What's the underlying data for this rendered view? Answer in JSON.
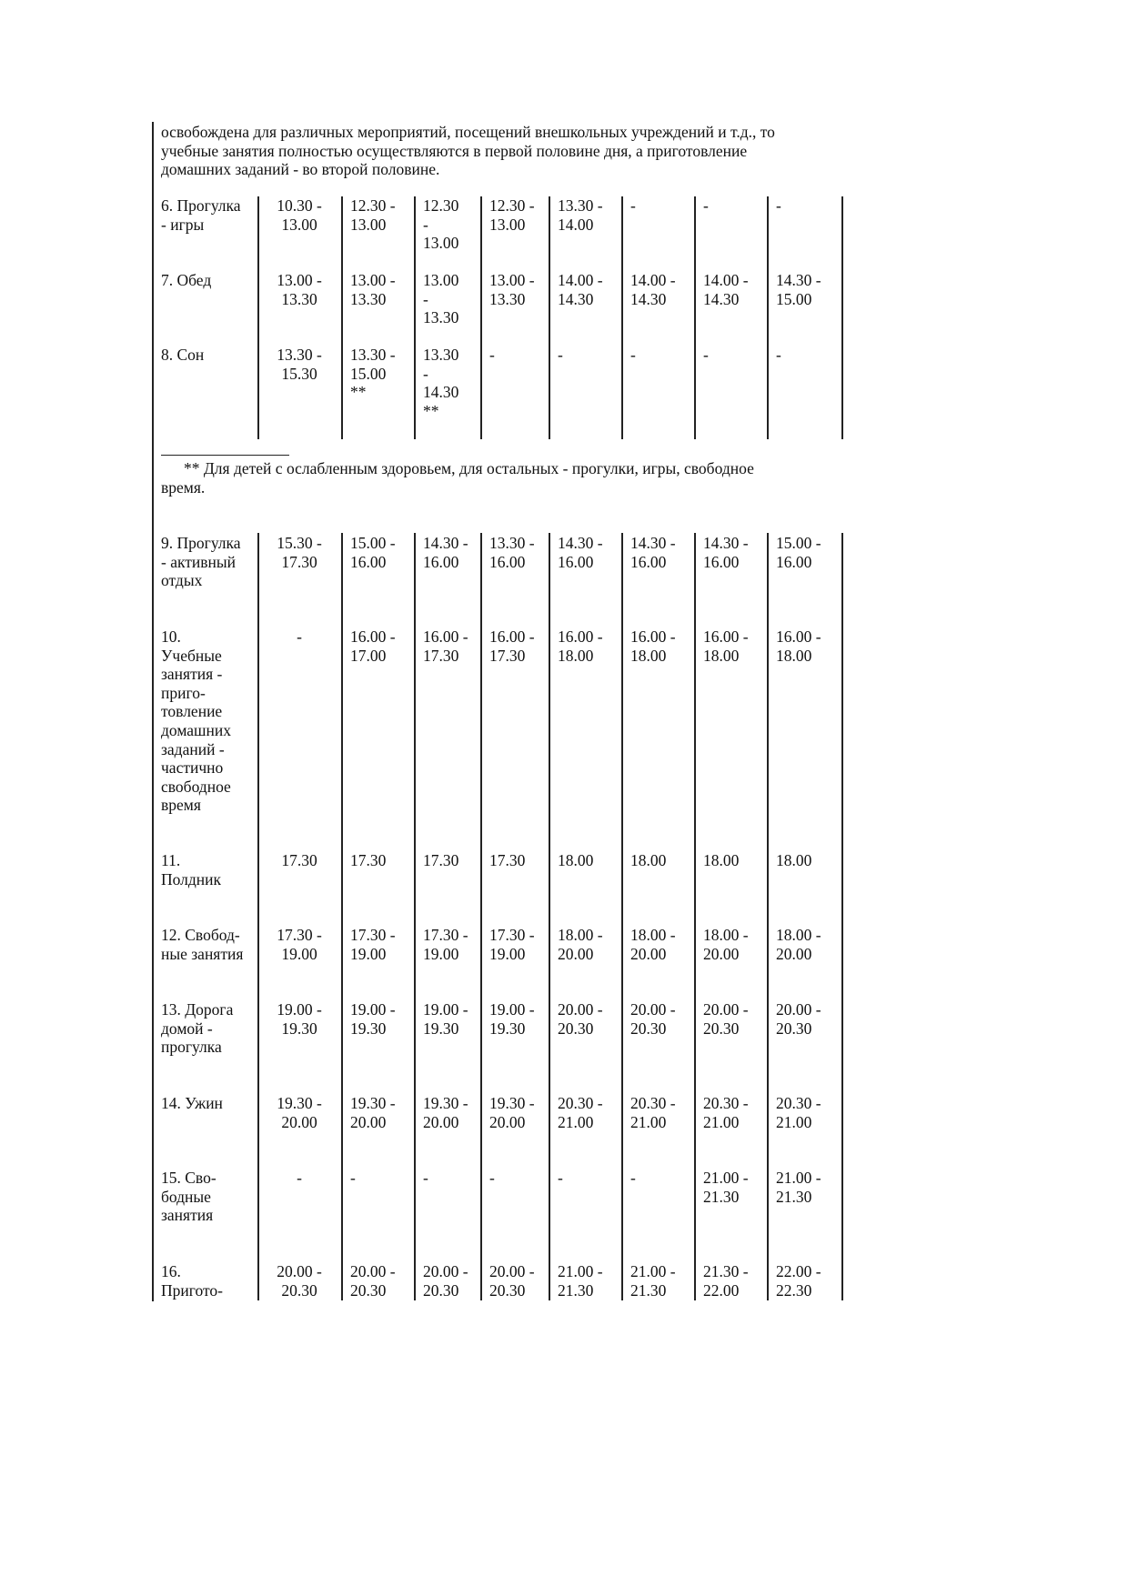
{
  "paragraph": "освобождена для различных мероприятий, посещений внешкольных учреждений и т.д., то\nучебные занятия полностью осуществляются в первой половине дня, а приготовление\nдомашних заданий - во второй половине.",
  "table1": {
    "rows": [
      [
        "6. Прогулка\n- игры",
        "10.30 -\n13.00",
        "12.30 -\n13.00",
        "12.30\n-\n13.00",
        "12.30 -\n13.00",
        "13.30 -\n14.00",
        "-",
        "-",
        "-"
      ],
      [
        "7. Обед",
        "13.00 -\n13.30",
        "13.00 -\n13.30",
        "13.00\n-\n13.30",
        "13.00 -\n13.30",
        "14.00 -\n14.30",
        "14.00 -\n14.30",
        "14.00 -\n14.30",
        "14.30 -\n15.00"
      ],
      [
        "8. Сон",
        "13.30 -\n15.30",
        "13.30 -\n15.00\n**",
        "13.30\n-\n14.30\n**",
        "-",
        "-",
        "-",
        "-",
        "-"
      ]
    ]
  },
  "footnote": "** Для детей с ослабленным здоровьем, для остальных - прогулки, игры, свободное\nвремя.",
  "table2": {
    "rows": [
      [
        "9. Прогулка\n- активный\nотдых",
        "15.30 -\n17.30",
        "15.00 -\n16.00",
        "14.30 -\n16.00",
        "13.30 -\n16.00",
        "14.30 -\n16.00",
        "14.30 -\n16.00",
        "14.30 -\n16.00",
        "15.00 -\n16.00"
      ],
      [
        "10.\nУчебные\nзанятия -\nприго-\nтовление\nдомашних\nзаданий -\nчастично\nсвободное\nвремя",
        "-",
        "16.00 -\n17.00",
        "16.00 -\n17.30",
        "16.00 -\n17.30",
        "16.00 -\n18.00",
        "16.00 -\n18.00",
        "16.00 -\n18.00",
        "16.00 -\n18.00"
      ],
      [
        "11.\nПолдник",
        "17.30",
        "17.30",
        "17.30",
        "17.30",
        "18.00",
        "18.00",
        "18.00",
        "18.00"
      ],
      [
        "12. Свобод-\nные занятия",
        "17.30 -\n19.00",
        "17.30 -\n19.00",
        "17.30 -\n19.00",
        "17.30 -\n19.00",
        "18.00 -\n20.00",
        "18.00 -\n20.00",
        "18.00 -\n20.00",
        "18.00 -\n20.00"
      ],
      [
        "13. Дорога\nдомой -\nпрогулка",
        "19.00 -\n19.30",
        "19.00 -\n19.30",
        "19.00 -\n19.30",
        "19.00 -\n19.30",
        "20.00 -\n20.30",
        "20.00 -\n20.30",
        "20.00 -\n20.30",
        "20.00 -\n20.30"
      ],
      [
        "14. Ужин",
        "19.30 -\n20.00",
        "19.30 -\n20.00",
        "19.30 -\n20.00",
        "19.30 -\n20.00",
        "20.30 -\n21.00",
        "20.30 -\n21.00",
        "20.30 -\n21.00",
        "20.30 -\n21.00"
      ],
      [
        "15. Сво-\nбодные\nзанятия",
        "-",
        "-",
        "-",
        "-",
        "-",
        "-",
        "21.00 -\n21.30",
        "21.00 -\n21.30"
      ],
      [
        "16.\nПригото-",
        "20.00 -\n20.30",
        "20.00 -\n20.30",
        "20.00 -\n20.30",
        "20.00 -\n20.30",
        "21.00 -\n21.30",
        "21.00 -\n21.30",
        "21.30 -\n22.00",
        "22.00 -\n22.30"
      ]
    ]
  }
}
